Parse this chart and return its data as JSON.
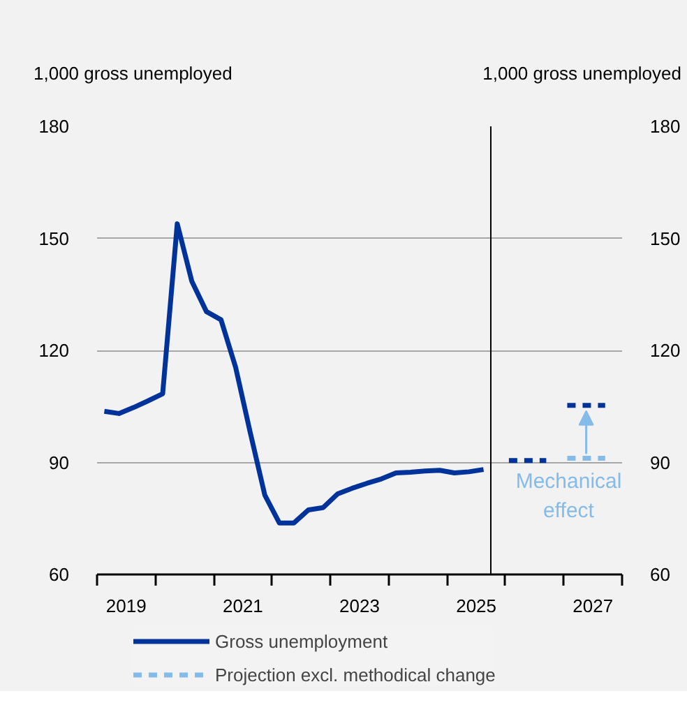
{
  "chart_data": {
    "type": "line",
    "ylabel": "1,000 gross unemployed",
    "y2label": "1,000 gross unemployed",
    "xlim": [
      2019,
      2028
    ],
    "xticks": [
      {
        "value": 2019,
        "label": null
      },
      {
        "value": 2019.5,
        "label": "2019"
      },
      {
        "value": 2020,
        "label": null
      },
      {
        "value": 2021,
        "label": null
      },
      {
        "value": 2021.5,
        "label": "2021"
      },
      {
        "value": 2022,
        "label": null
      },
      {
        "value": 2023,
        "label": null
      },
      {
        "value": 2023.5,
        "label": "2023"
      },
      {
        "value": 2024,
        "label": null
      },
      {
        "value": 2025,
        "label": null
      },
      {
        "value": 2025.5,
        "label": "2025"
      },
      {
        "value": 2026,
        "label": null
      },
      {
        "value": 2027,
        "label": null
      },
      {
        "value": 2027.5,
        "label": "2027"
      },
      {
        "value": 2028,
        "label": null
      }
    ],
    "ylim": [
      60,
      180
    ],
    "yticks": [
      60,
      90,
      120,
      150,
      180
    ],
    "y2lim": [
      60,
      180
    ],
    "y2ticks": [
      60,
      90,
      120,
      150,
      180
    ],
    "grid": "y",
    "legend": "bottom",
    "series": [
      {
        "name": "Gross unemployment",
        "color": "#003399",
        "line_style": "solid",
        "x": [
          2019.125,
          2019.375,
          2019.625,
          2019.875,
          2020.125,
          2020.375,
          2020.625,
          2020.875,
          2021.125,
          2021.375,
          2021.625,
          2021.875,
          2022.125,
          2022.375,
          2022.625,
          2022.875,
          2023.125,
          2023.375,
          2023.625,
          2023.875,
          2024.125,
          2024.375,
          2024.625,
          2024.875,
          2025.125,
          2025.375,
          2025.625
        ],
        "values": [
          103.7,
          103.1,
          104.7,
          106.5,
          108.4,
          153.9,
          138.5,
          130.4,
          128.2,
          115.5,
          98.1,
          81.3,
          73.8,
          73.8,
          77.3,
          77.9,
          81.6,
          83.1,
          84.4,
          85.6,
          87.2,
          87.4,
          87.7,
          87.9,
          87.2,
          87.5,
          88.1
        ]
      },
      {
        "color": "#003399",
        "line_style": "dashed",
        "x": [
          2026.06,
          2026.7,
          2026.9,
          2027.06,
          2027.71
        ],
        "values": [
          90.5,
          90.5,
          null,
          105.3,
          105.3
        ]
      },
      {
        "name": "Projection excl. methodical change",
        "color": "#85bbe8",
        "line_style": "dashed",
        "x": [
          2027.06,
          2027.71
        ],
        "values": [
          91.1,
          91.1
        ]
      }
    ],
    "ref_lines": [
      {
        "axis": "x",
        "value": 2025.75,
        "color": "#000000"
      }
    ],
    "annotations": [
      "Mechanical effect"
    ]
  }
}
